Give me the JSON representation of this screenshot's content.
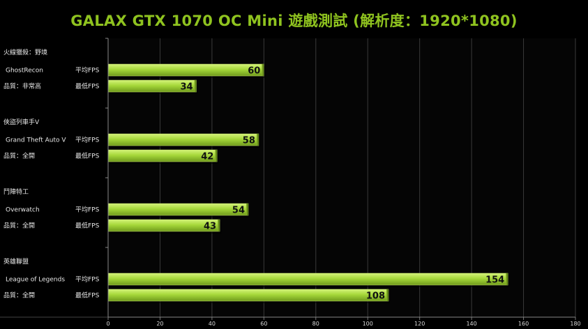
{
  "chart_data": {
    "type": "bar",
    "orientation": "horizontal",
    "title": "GALAX GTX 1070 OC Mini 遊戲測試 (解析度：1920*1080)",
    "xlim": [
      0,
      180
    ],
    "x_ticks": [
      "0",
      "20",
      "40",
      "60",
      "80",
      "100",
      "120",
      "140",
      "160",
      "180"
    ],
    "grid": true,
    "bar_color": "#a6d83a",
    "groups": [
      {
        "title": "火線獵殺：野境",
        "game": "GhostRecon",
        "quality": "品質：非常高",
        "bars": [
          {
            "label": "平均FPS",
            "value": 60
          },
          {
            "label": "最低FPS",
            "value": 34
          }
        ]
      },
      {
        "title": "俠盜列車手V",
        "game": "Grand Theft Auto V",
        "quality": "品質：全開",
        "bars": [
          {
            "label": "平均FPS",
            "value": 58
          },
          {
            "label": "最低FPS",
            "value": 42
          }
        ]
      },
      {
        "title": "鬥陣特工",
        "game": "Overwatch",
        "quality": "品質：全開",
        "bars": [
          {
            "label": "平均FPS",
            "value": 54
          },
          {
            "label": "最低FPS",
            "value": 43
          }
        ]
      },
      {
        "title": "英雄聯盟",
        "game": "League of Legends",
        "quality": "品質：全開",
        "bars": [
          {
            "label": "平均FPS",
            "value": 154
          },
          {
            "label": "最低FPS",
            "value": 108
          }
        ]
      }
    ]
  }
}
